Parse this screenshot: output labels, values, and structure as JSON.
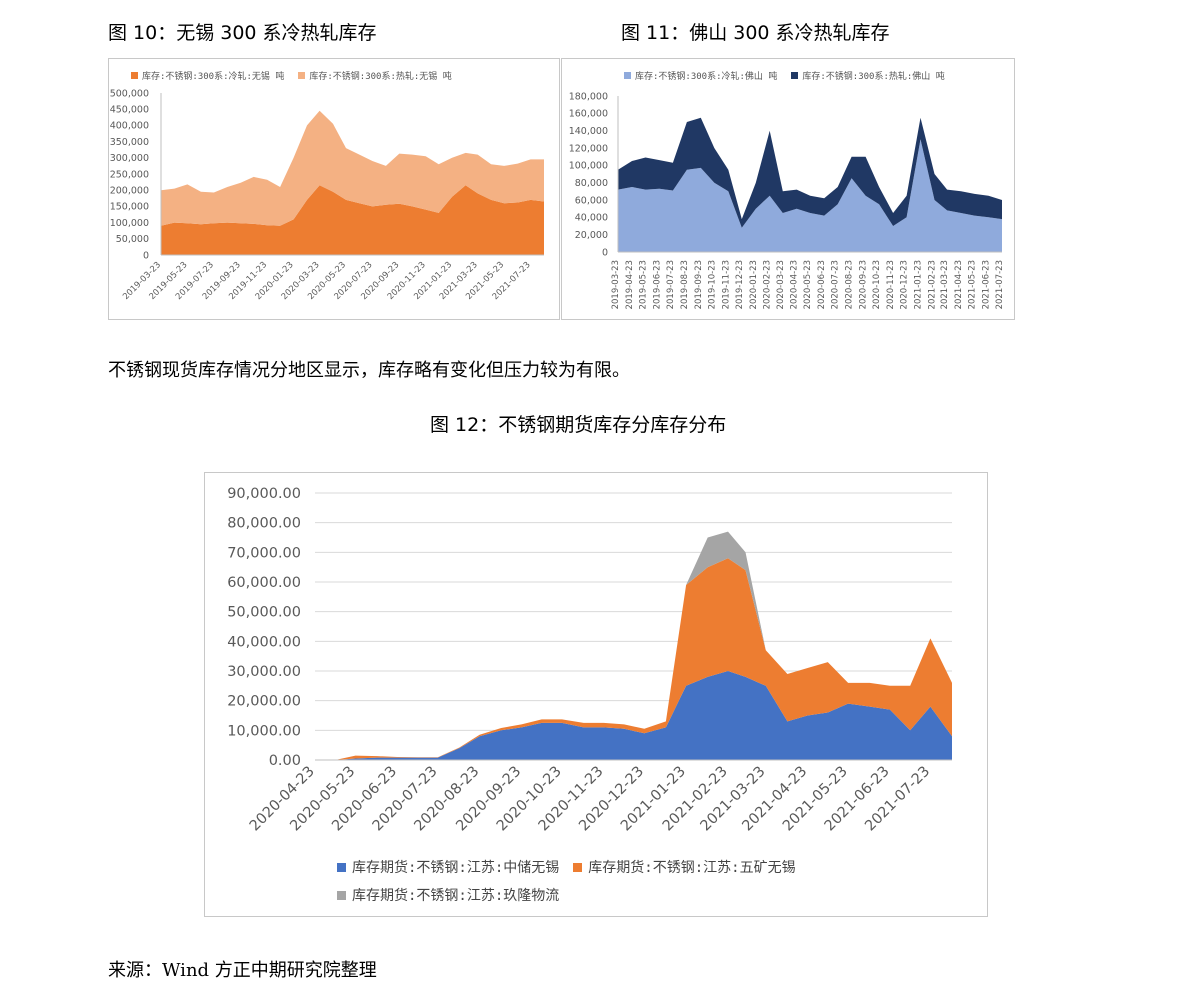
{
  "text": {
    "fig10_title": "图 10：无锡 300 系冷热轧库存",
    "fig11_title": "图 11：佛山 300 系冷热轧库存",
    "paragraph": "不锈钢现货库存情况分地区显示，库存略有变化但压力较为有限。",
    "fig12_title": "图 12：不锈钢期货库存分库存分布",
    "source": "来源：Wind  方正中期研究院整理"
  },
  "chart_data": [
    {
      "id": "chart10",
      "type": "area",
      "stacked": true,
      "title": "图 10：无锡 300 系冷热轧库存",
      "x_tick_labels": [
        "2019-03-23",
        "2019-05-23",
        "2019-07-23",
        "2019-09-23",
        "2019-11-23",
        "2020-01-23",
        "2020-03-23",
        "2020-05-23",
        "2020-07-23",
        "2020-09-23",
        "2020-11-23",
        "2021-01-23",
        "2021-03-23",
        "2021-05-23",
        "2021-07-23"
      ],
      "y_ticks": [
        0,
        50000,
        100000,
        150000,
        200000,
        250000,
        300000,
        350000,
        400000,
        450000,
        500000
      ],
      "y_tick_labels": [
        "0",
        "50,000",
        "100,000",
        "150,000",
        "200,000",
        "250,000",
        "300,000",
        "350,000",
        "400,000",
        "450,000",
        "500,000"
      ],
      "ylim": [
        0,
        500000
      ],
      "legend_position": "top-left",
      "x": [
        "2019-03-23",
        "2019-04-23",
        "2019-05-23",
        "2019-06-23",
        "2019-07-23",
        "2019-08-23",
        "2019-09-23",
        "2019-10-23",
        "2019-11-23",
        "2019-12-23",
        "2020-01-23",
        "2020-02-23",
        "2020-03-23",
        "2020-04-23",
        "2020-05-23",
        "2020-06-23",
        "2020-07-23",
        "2020-08-23",
        "2020-09-23",
        "2020-10-23",
        "2020-11-23",
        "2020-12-23",
        "2021-01-23",
        "2021-02-23",
        "2021-03-23",
        "2021-04-23",
        "2021-05-23",
        "2021-06-23",
        "2021-07-23",
        "2021-08-23"
      ],
      "series": [
        {
          "name": "库存:不锈钢:300系:冷轧:无锡 吨",
          "color": "#ED7D31",
          "values": [
            90000,
            100000,
            98000,
            95000,
            98000,
            100000,
            98000,
            96000,
            92000,
            90000,
            110000,
            170000,
            215000,
            195000,
            170000,
            160000,
            150000,
            155000,
            158000,
            150000,
            140000,
            130000,
            180000,
            215000,
            190000,
            170000,
            160000,
            162000,
            170000,
            165000
          ]
        },
        {
          "name": "库存:不锈钢:300系:热轧:无锡 吨",
          "color": "#F4B183",
          "values": [
            110000,
            105000,
            120000,
            100000,
            95000,
            110000,
            125000,
            145000,
            140000,
            120000,
            190000,
            230000,
            230000,
            210000,
            160000,
            150000,
            140000,
            120000,
            155000,
            160000,
            165000,
            150000,
            120000,
            100000,
            120000,
            110000,
            115000,
            120000,
            125000,
            130000
          ]
        }
      ]
    },
    {
      "id": "chart11",
      "type": "area",
      "stacked": true,
      "title": "图 11：佛山 300 系冷热轧库存",
      "x_tick_labels": [
        "2019-03-23",
        "2019-04-23",
        "2019-05-23",
        "2019-06-23",
        "2019-07-23",
        "2019-08-23",
        "2019-09-23",
        "2019-10-23",
        "2019-11-23",
        "2019-12-23",
        "2020-01-23",
        "2020-02-23",
        "2020-03-23",
        "2020-04-23",
        "2020-05-23",
        "2020-06-23",
        "2020-07-23",
        "2020-08-23",
        "2020-09-23",
        "2020-10-23",
        "2020-11-23",
        "2020-12-23",
        "2021-01-23",
        "2021-02-23",
        "2021-03-23",
        "2021-04-23",
        "2021-05-23",
        "2021-06-23",
        "2021-07-23"
      ],
      "y_ticks": [
        0,
        20000,
        40000,
        60000,
        80000,
        100000,
        120000,
        140000,
        160000,
        180000
      ],
      "y_tick_labels": [
        "0",
        "20,000",
        "40,000",
        "60,000",
        "80,000",
        "100,000",
        "120,000",
        "140,000",
        "160,000",
        "180,000"
      ],
      "ylim": [
        0,
        180000
      ],
      "legend_position": "top-left",
      "x": [
        "2019-03-23",
        "2019-04-23",
        "2019-05-23",
        "2019-06-23",
        "2019-07-23",
        "2019-08-23",
        "2019-09-23",
        "2019-10-23",
        "2019-11-23",
        "2019-12-23",
        "2020-01-23",
        "2020-02-23",
        "2020-03-23",
        "2020-04-23",
        "2020-05-23",
        "2020-06-23",
        "2020-07-23",
        "2020-08-23",
        "2020-09-23",
        "2020-10-23",
        "2020-11-23",
        "2020-12-23",
        "2021-01-23",
        "2021-02-23",
        "2021-03-23",
        "2021-04-23",
        "2021-05-23",
        "2021-06-23",
        "2021-07-23"
      ],
      "series": [
        {
          "name": "库存:不锈钢:300系:冷轧:佛山 吨",
          "color": "#8FAADC",
          "values": [
            72000,
            75000,
            72000,
            73000,
            71000,
            95000,
            97000,
            80000,
            70000,
            28000,
            50000,
            65000,
            45000,
            50000,
            45000,
            42000,
            55000,
            85000,
            65000,
            55000,
            30000,
            40000,
            130000,
            60000,
            48000,
            45000,
            42000,
            40000,
            38000
          ]
        },
        {
          "name": "库存:不锈钢:300系:热轧:佛山 吨",
          "color": "#203864",
          "values": [
            23000,
            30000,
            37000,
            33000,
            32000,
            55000,
            58000,
            40000,
            25000,
            10000,
            30000,
            75000,
            25000,
            22000,
            20000,
            20000,
            20000,
            25000,
            45000,
            20000,
            15000,
            25000,
            25000,
            30000,
            24000,
            25000,
            25000,
            25000,
            22000
          ]
        }
      ]
    },
    {
      "id": "chart12",
      "type": "area",
      "stacked": true,
      "title": "图 12：不锈钢期货库存分库存分布",
      "x_tick_labels": [
        "2020-04-23",
        "2020-05-23",
        "2020-06-23",
        "2020-07-23",
        "2020-08-23",
        "2020-09-23",
        "2020-10-23",
        "2020-11-23",
        "2020-12-23",
        "2021-01-23",
        "2021-02-23",
        "2021-03-23",
        "2021-04-23",
        "2021-05-23",
        "2021-06-23",
        "2021-07-23"
      ],
      "y_ticks": [
        0,
        10000,
        20000,
        30000,
        40000,
        50000,
        60000,
        70000,
        80000,
        90000
      ],
      "y_tick_labels": [
        "0.00",
        "10,000.00",
        "20,000.00",
        "30,000.00",
        "40,000.00",
        "50,000.00",
        "60,000.00",
        "70,000.00",
        "80,000.00",
        "90,000.00"
      ],
      "ylim": [
        0,
        90000
      ],
      "legend_position": "bottom",
      "x": [
        "2020-04-23",
        "2020-05-08",
        "2020-05-23",
        "2020-06-08",
        "2020-06-23",
        "2020-07-08",
        "2020-07-23",
        "2020-08-08",
        "2020-08-23",
        "2020-09-08",
        "2020-09-23",
        "2020-10-08",
        "2020-10-23",
        "2020-11-08",
        "2020-11-23",
        "2020-12-08",
        "2020-12-23",
        "2021-01-08",
        "2021-01-23",
        "2021-02-08",
        "2021-02-23",
        "2021-03-08",
        "2021-03-23",
        "2021-04-08",
        "2021-04-23",
        "2021-05-08",
        "2021-05-23",
        "2021-06-08",
        "2021-06-23",
        "2021-07-08",
        "2021-07-23",
        "2021-08-08"
      ],
      "series": [
        {
          "name": "库存期货:不锈钢:江苏:中储无锡",
          "color": "#4472C4",
          "values": [
            0,
            0,
            500,
            800,
            800,
            800,
            800,
            4000,
            8000,
            10000,
            11000,
            12500,
            12500,
            11000,
            11000,
            10500,
            9000,
            11000,
            25000,
            28000,
            30000,
            28000,
            25000,
            13000,
            15000,
            16000,
            19000,
            18000,
            17000,
            10000,
            18000,
            8000
          ]
        },
        {
          "name": "库存期货:不锈钢:江苏:五矿无锡",
          "color": "#ED7D31",
          "values": [
            0,
            0,
            1000,
            500,
            200,
            100,
            100,
            200,
            500,
            800,
            1000,
            1200,
            1200,
            1500,
            1500,
            1500,
            1500,
            2000,
            34000,
            37000,
            38000,
            36000,
            12000,
            16000,
            16000,
            17000,
            7000,
            8000,
            8000,
            15000,
            23000,
            18000
          ]
        },
        {
          "name": "库存期货:不锈钢:江苏:玖隆物流",
          "color": "#A5A5A5",
          "values": [
            0,
            0,
            0,
            0,
            0,
            0,
            0,
            0,
            0,
            0,
            0,
            0,
            0,
            0,
            0,
            0,
            0,
            0,
            0,
            10000,
            9000,
            6000,
            0,
            0,
            0,
            0,
            0,
            0,
            0,
            0,
            0,
            0
          ]
        }
      ]
    }
  ]
}
